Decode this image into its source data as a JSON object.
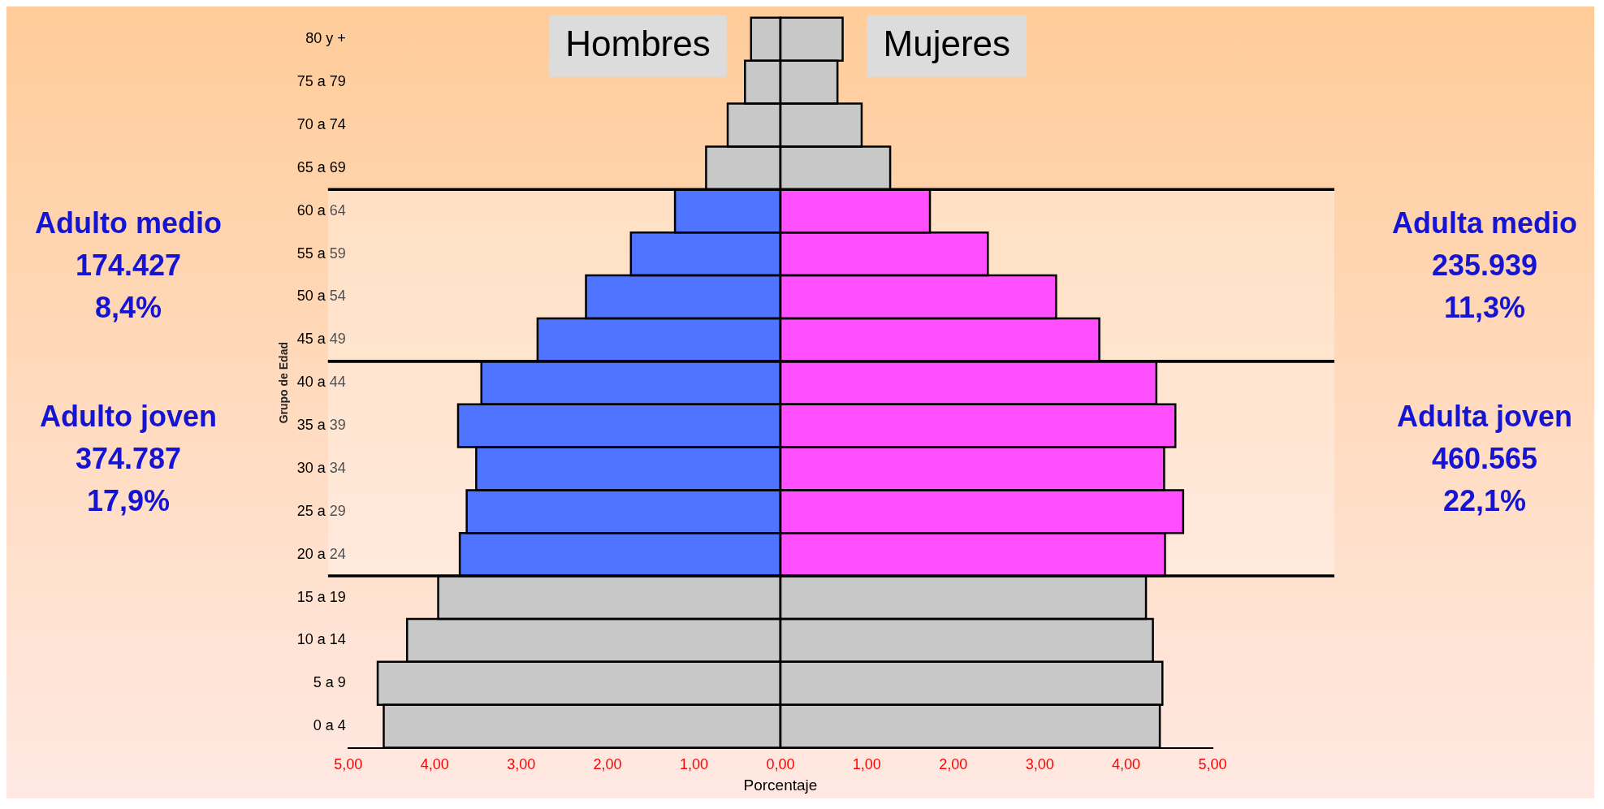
{
  "chart_data": {
    "type": "bar",
    "orientation": "horizontal",
    "categories": [
      "80 y +",
      "75 a 79",
      "70 a 74",
      "65 a 69",
      "60 a 64",
      "55 a 59",
      "50 a 54",
      "45 a 49",
      "40 a 44",
      "35 a 39",
      "30 a 34",
      "25 a 29",
      "20 a 24",
      "15 a 19",
      "10 a 14",
      "5 a 9",
      "0 a 4"
    ],
    "series": [
      {
        "name": "Hombres",
        "colors": [
          "#c8c8c8",
          "#c8c8c8",
          "#c8c8c8",
          "#c8c8c8",
          "#4f74ff",
          "#4f74ff",
          "#4f74ff",
          "#4f74ff",
          "#4f74ff",
          "#4f74ff",
          "#4f74ff",
          "#4f74ff",
          "#4f74ff",
          "#c8c8c8",
          "#c8c8c8",
          "#c8c8c8",
          "#c8c8c8"
        ],
        "values": [
          -0.34,
          -0.41,
          -0.61,
          -0.86,
          -1.22,
          -1.73,
          -2.25,
          -2.81,
          -3.46,
          -3.73,
          -3.52,
          -3.63,
          -3.71,
          -3.96,
          -4.32,
          -4.66,
          -4.59
        ]
      },
      {
        "name": "Mujeres",
        "colors": [
          "#c8c8c8",
          "#c8c8c8",
          "#c8c8c8",
          "#c8c8c8",
          "#ff4fff",
          "#ff4fff",
          "#ff4fff",
          "#ff4fff",
          "#ff4fff",
          "#ff4fff",
          "#ff4fff",
          "#ff4fff",
          "#ff4fff",
          "#c8c8c8",
          "#c8c8c8",
          "#c8c8c8",
          "#c8c8c8"
        ],
        "values": [
          0.72,
          0.66,
          0.94,
          1.27,
          1.73,
          2.4,
          3.19,
          3.69,
          4.35,
          4.57,
          4.44,
          4.66,
          4.45,
          4.23,
          4.31,
          4.42,
          4.39
        ]
      }
    ],
    "xlim": [
      -5,
      5
    ],
    "xticks": [
      {
        "value": -5,
        "label": "5,00"
      },
      {
        "value": -4,
        "label": "4,00"
      },
      {
        "value": -3,
        "label": "3,00"
      },
      {
        "value": -2,
        "label": "2,00"
      },
      {
        "value": -1,
        "label": "1,00"
      },
      {
        "value": 0,
        "label": "0,00"
      },
      {
        "value": 1,
        "label": "1,00"
      },
      {
        "value": 2,
        "label": "2,00"
      },
      {
        "value": 3,
        "label": "3,00"
      },
      {
        "value": 4,
        "label": "4,00"
      },
      {
        "value": 5,
        "label": "5,00"
      }
    ],
    "xlabel": "Porcentaje",
    "ylabel": "Grupo de Edad",
    "bands": [
      {
        "axis": "y",
        "from": "60 a 64",
        "to": "45 a 49",
        "color": "#ffffff"
      },
      {
        "axis": "y",
        "from": "40 a 44",
        "to": "20 a 24",
        "color": "#ffffff"
      }
    ],
    "annotations": [
      "Adulto medio\n174.427\n8,4%",
      "Adulto joven\n374.787\n17,9%",
      "Adulta medio\n235.939\n11,3%",
      "Adulta joven\n460.565\n22,1%"
    ],
    "stacked": true,
    "legend": false,
    "grid": false
  }
}
